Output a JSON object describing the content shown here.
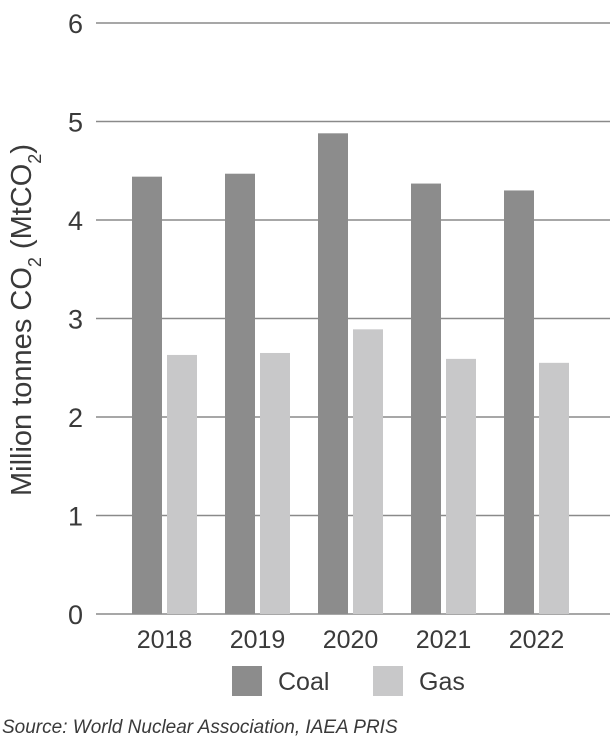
{
  "chart_data": {
    "type": "bar",
    "categories": [
      "2018",
      "2019",
      "2020",
      "2021",
      "2022"
    ],
    "series": [
      {
        "name": "Coal",
        "values": [
          4.44,
          4.47,
          4.88,
          4.37,
          4.3
        ],
        "color": "#8c8c8c"
      },
      {
        "name": "Gas",
        "values": [
          2.63,
          2.65,
          2.89,
          2.59,
          2.55
        ],
        "color": "#c8c8c9"
      }
    ],
    "ylim": [
      0,
      6
    ],
    "yticks": [
      "0",
      "1",
      "2",
      "3",
      "4",
      "5",
      "6"
    ],
    "ylabel": {
      "main": "Million tonnes CO",
      "sub1": "2",
      "mid": " (MtCO",
      "sub2": "2",
      "end": ")"
    },
    "xlabel": "",
    "grid": true,
    "legend_position": "bottom-center"
  },
  "source": "Source: World Nuclear Association, IAEA PRIS"
}
